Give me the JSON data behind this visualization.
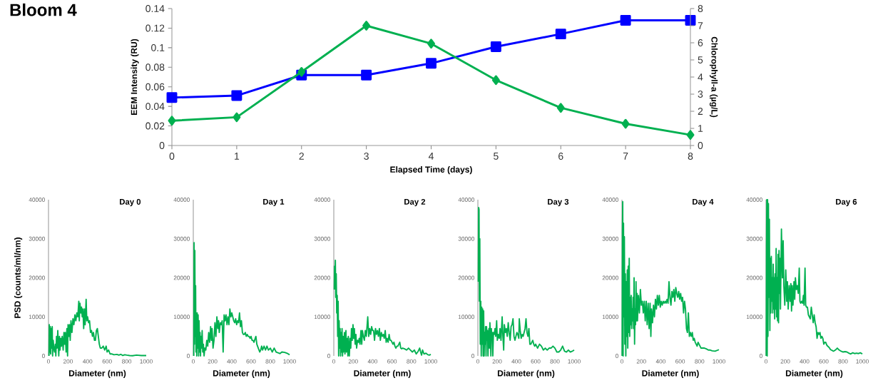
{
  "chart_data": [
    {
      "type": "line",
      "title": "Bloom 4",
      "xlabel": "Elapsed Time (days)",
      "ylabel": "EEM Intensity (RU)",
      "y2label": "Chlorophyll-a (µg/L)",
      "x": [
        0,
        1,
        2,
        3,
        4,
        5,
        6,
        7,
        8
      ],
      "xlim": [
        0,
        8
      ],
      "xticks": [
        0,
        1,
        2,
        3,
        4,
        5,
        6,
        7,
        8
      ],
      "ylim": [
        0,
        0.14
      ],
      "yticks": [
        0,
        0.02,
        0.04,
        0.06,
        0.08,
        0.1,
        0.12,
        0.14
      ],
      "y2lim": [
        0,
        8
      ],
      "y2ticks": [
        0,
        1,
        2,
        3,
        4,
        5,
        6,
        7,
        8
      ],
      "series": [
        {
          "color": "#0000ff",
          "marker": "square",
          "values": [
            0.049,
            0.051,
            0.072,
            0.072,
            0.084,
            0.101,
            0.114,
            0.128,
            0.128
          ]
        },
        {
          "color": "#00b050",
          "marker": "diamond",
          "axis": "y2",
          "values": [
            1.45,
            1.65,
            4.3,
            7.0,
            5.95,
            3.82,
            2.2,
            1.27,
            0.62
          ]
        }
      ]
    },
    {
      "type": "line",
      "title": "Day 0",
      "xlabel": "Diameter (nm)",
      "ylabel": "PSD (counts/ml/nm)",
      "xlim": [
        0,
        1000
      ],
      "xticks": [
        0,
        200,
        400,
        600,
        800,
        1000
      ],
      "ylim": [
        0,
        40000
      ],
      "yticks": [
        0,
        10000,
        20000,
        30000,
        40000
      ],
      "series": [
        {
          "color": "#00b050",
          "x": [
            5,
            8,
            12,
            18,
            22,
            28,
            32,
            38,
            42,
            48,
            55,
            62,
            70,
            75,
            82,
            88,
            95,
            100,
            105,
            112,
            118,
            125,
            132,
            140,
            150,
            158,
            165,
            172,
            180,
            188,
            195,
            200,
            208,
            215,
            222,
            230,
            240,
            250,
            260,
            270,
            280,
            290,
            300,
            310,
            315,
            322,
            330,
            338,
            345,
            352,
            360,
            368,
            375,
            385,
            392,
            400,
            410,
            420,
            430,
            440,
            450,
            460,
            470,
            480,
            490,
            500,
            510,
            520,
            530,
            545,
            560,
            575,
            590,
            600,
            615,
            630,
            650,
            670,
            700,
            720,
            740,
            760,
            780,
            800,
            830,
            860,
            900,
            950,
            1000
          ],
          "values": [
            0,
            8000,
            1000,
            7500,
            500,
            7000,
            2000,
            7500,
            0,
            4000,
            2000,
            1000,
            3000,
            0,
            5000,
            2000,
            6500,
            3000,
            0,
            5000,
            1500,
            4500,
            2500,
            5000,
            1500,
            6000,
            3000,
            6000,
            1000,
            7000,
            0,
            8000,
            5000,
            8000,
            4000,
            9000,
            6000,
            9500,
            8000,
            10500,
            9000,
            11000,
            10000,
            14000,
            9000,
            13500,
            11000,
            12500,
            10000,
            12000,
            7000,
            12000,
            8000,
            14500,
            9000,
            10000,
            8500,
            9000,
            6000,
            6500,
            5000,
            6000,
            4000,
            4000,
            6500,
            7000,
            5000,
            3000,
            2000,
            2000,
            2500,
            1500,
            2500,
            1000,
            1500,
            500,
            500,
            300,
            400,
            200,
            400,
            100,
            300,
            200,
            100,
            50,
            200,
            100,
            100
          ]
        }
      ]
    },
    {
      "type": "line",
      "title": "Day 1",
      "xlabel": "Diameter (nm)",
      "xlim": [
        0,
        1000
      ],
      "xticks": [
        0,
        200,
        400,
        600,
        800,
        1000
      ],
      "ylim": [
        0,
        40000
      ],
      "yticks": [
        0,
        10000,
        20000,
        30000,
        40000
      ],
      "series": [
        {
          "color": "#00b050",
          "x": [
            5,
            8,
            12,
            16,
            20,
            24,
            28,
            32,
            36,
            40,
            45,
            50,
            55,
            60,
            65,
            70,
            75,
            80,
            85,
            92,
            98,
            105,
            112,
            120,
            130,
            140,
            150,
            160,
            170,
            180,
            188,
            195,
            205,
            215,
            225,
            235,
            245,
            255,
            262,
            270,
            280,
            290,
            300,
            310,
            320,
            330,
            340,
            350,
            360,
            370,
            380,
            390,
            400,
            410,
            420,
            430,
            440,
            450,
            460,
            470,
            480,
            490,
            500,
            510,
            520,
            530,
            540,
            550,
            560,
            570,
            580,
            590,
            600,
            610,
            620,
            630,
            650,
            660,
            675,
            690,
            700,
            710,
            720,
            735,
            750,
            765,
            780,
            800,
            820,
            840,
            860,
            880,
            900,
            920,
            950,
            980,
            1000
          ],
          "values": [
            0,
            29000,
            3000,
            27000,
            5000,
            18000,
            1000,
            11000,
            0,
            11000,
            2000,
            10500,
            0,
            9000,
            1000,
            6000,
            0,
            5000,
            2000,
            6500,
            1000,
            3000,
            0,
            2000,
            1500,
            4000,
            2500,
            6000,
            3500,
            7500,
            4000,
            7000,
            2000,
            4000,
            8500,
            5000,
            10000,
            7000,
            9000,
            6000,
            8500,
            8000,
            9000,
            1000,
            10500,
            9000,
            10500,
            8000,
            10000,
            8000,
            12000,
            10000,
            11000,
            10000,
            9000,
            8500,
            9500,
            8000,
            9000,
            8500,
            11000,
            7500,
            9000,
            6000,
            5500,
            5500,
            6000,
            5000,
            5500,
            5000,
            5000,
            4500,
            5000,
            4000,
            4000,
            3500,
            5000,
            3000,
            2000,
            1000,
            1500,
            2500,
            1500,
            2500,
            1500,
            2500,
            1500,
            2000,
            1000,
            2000,
            1000,
            800,
            600,
            1000,
            900,
            600,
            300
          ]
        }
      ]
    },
    {
      "type": "line",
      "title": "Day 2",
      "xlabel": "Diameter (nm)",
      "xlim": [
        0,
        1000
      ],
      "xticks": [
        0,
        200,
        400,
        600,
        800,
        1000
      ],
      "ylim": [
        0,
        40000
      ],
      "yticks": [
        0,
        10000,
        20000,
        30000,
        40000
      ],
      "series": [
        {
          "color": "#00b050",
          "x": [
            5,
            8,
            12,
            16,
            20,
            25,
            30,
            35,
            40,
            45,
            50,
            55,
            60,
            65,
            70,
            75,
            80,
            85,
            90,
            95,
            100,
            110,
            115,
            125,
            130,
            140,
            145,
            150,
            160,
            168,
            175,
            182,
            190,
            198,
            205,
            212,
            220,
            228,
            235,
            245,
            255,
            262,
            270,
            280,
            288,
            295,
            305,
            315,
            325,
            335,
            350,
            360,
            370,
            380,
            390,
            400,
            410,
            420,
            430,
            440,
            450,
            460,
            470,
            480,
            490,
            500,
            510,
            520,
            530,
            540,
            550,
            560,
            570,
            580,
            590,
            600,
            610,
            620,
            630,
            640,
            650,
            660,
            670,
            680,
            690,
            700,
            710,
            730,
            750,
            770,
            790,
            810,
            830,
            850,
            870,
            885,
            895,
            905,
            915,
            930,
            950,
            970,
            985,
            1000
          ],
          "values": [
            17000,
            23000,
            20000,
            24500,
            15000,
            21000,
            11000,
            15500,
            5000,
            14000,
            0,
            9000,
            2000,
            7000,
            0,
            6000,
            1000,
            7000,
            0,
            5000,
            1000,
            6000,
            500,
            6500,
            1000,
            4500,
            0,
            5000,
            0,
            4500,
            2000,
            7000,
            4000,
            8000,
            4500,
            7000,
            3000,
            5500,
            2000,
            4000,
            3500,
            4500,
            3000,
            6500,
            3000,
            6500,
            5000,
            4000,
            6500,
            5000,
            10000,
            5000,
            7000,
            5500,
            7500,
            6500,
            6500,
            4000,
            7000,
            5500,
            6500,
            5000,
            7000,
            4000,
            6000,
            5000,
            5500,
            4500,
            6500,
            3500,
            4500,
            3500,
            5500,
            4000,
            4000,
            3500,
            3000,
            3500,
            2500,
            2000,
            2500,
            2500,
            3000,
            3500,
            2000,
            1800,
            2000,
            1800,
            1500,
            2000,
            1500,
            1000,
            1500,
            500,
            1200,
            2000,
            1000,
            200,
            1500,
            500,
            700,
            300,
            200,
            400
          ]
        }
      ]
    },
    {
      "type": "line",
      "title": "Day 3",
      "xlabel": "Diameter (nm)",
      "xlim": [
        0,
        1000
      ],
      "xticks": [
        0,
        200,
        400,
        600,
        800,
        1000
      ],
      "ylim": [
        0,
        40000
      ],
      "yticks": [
        0,
        10000,
        20000,
        30000,
        40000
      ],
      "series": [
        {
          "color": "#00b050",
          "x": [
            5,
            8,
            12,
            16,
            20,
            25,
            30,
            35,
            40,
            45,
            50,
            55,
            60,
            65,
            70,
            75,
            80,
            85,
            90,
            95,
            100,
            105,
            110,
            115,
            120,
            125,
            130,
            135,
            140,
            145,
            150,
            155,
            162,
            170,
            178,
            185,
            195,
            202,
            212,
            222,
            230,
            240,
            252,
            260,
            268,
            275,
            285,
            295,
            305,
            315,
            325,
            335,
            345,
            355,
            365,
            375,
            385,
            395,
            405,
            415,
            425,
            430,
            440,
            450,
            460,
            470,
            480,
            490,
            500,
            510,
            520,
            530,
            540,
            550,
            560,
            570,
            580,
            590,
            600,
            610,
            620,
            640,
            660,
            680,
            700,
            720,
            740,
            760,
            780,
            800,
            820,
            840,
            860,
            880,
            900,
            920,
            940,
            960,
            980,
            1000
          ],
          "values": [
            19000,
            38000,
            37500,
            14000,
            30000,
            3000,
            14000,
            0,
            12500,
            3000,
            12000,
            0,
            11500,
            0,
            6000,
            3000,
            7500,
            0,
            7500,
            4000,
            6500,
            0,
            5000,
            7000,
            2000,
            8500,
            5000,
            0,
            7000,
            4000,
            6000,
            0,
            6000,
            5500,
            7000,
            5000,
            9000,
            4000,
            5500,
            4500,
            7000,
            4000,
            10000,
            5000,
            1500,
            8000,
            6000,
            7000,
            5000,
            8500,
            6000,
            4000,
            7500,
            8000,
            9500,
            5000,
            4000,
            5000,
            6000,
            5500,
            4500,
            9500,
            6500,
            4500,
            5500,
            5000,
            6000,
            7000,
            9500,
            6000,
            5000,
            7000,
            3000,
            3000,
            3500,
            4000,
            3000,
            2500,
            3000,
            2500,
            2000,
            3000,
            2500,
            1500,
            2000,
            1500,
            2000,
            2000,
            2500,
            2000,
            1000,
            1000,
            1500,
            2500,
            1200,
            1000,
            1500,
            1000,
            1200,
            1500
          ]
        }
      ]
    },
    {
      "type": "line",
      "title": "Day 4",
      "xlabel": "Diameter (nm)",
      "xlim": [
        0,
        1000
      ],
      "xticks": [
        0,
        200,
        400,
        600,
        800,
        1000
      ],
      "ylim": [
        0,
        40000
      ],
      "yticks": [
        0,
        10000,
        20000,
        30000,
        40000
      ],
      "series": [
        {
          "color": "#00b050",
          "x": [
            2,
            5,
            8,
            12,
            16,
            20,
            25,
            30,
            35,
            40,
            45,
            50,
            55,
            60,
            65,
            70,
            75,
            80,
            85,
            90,
            95,
            100,
            105,
            110,
            115,
            120,
            125,
            130,
            135,
            140,
            145,
            150,
            155,
            160,
            170,
            180,
            190,
            200,
            210,
            220,
            230,
            240,
            250,
            260,
            270,
            280,
            290,
            298,
            305,
            315,
            325,
            335,
            345,
            355,
            365,
            375,
            385,
            395,
            405,
            415,
            425,
            435,
            445,
            455,
            465,
            475,
            485,
            495,
            505,
            515,
            525,
            535,
            545,
            555,
            565,
            575,
            585,
            595,
            605,
            615,
            625,
            635,
            645,
            655,
            665,
            675,
            685,
            695,
            705,
            715,
            725,
            735,
            745,
            755,
            765,
            775,
            785,
            795,
            805,
            815,
            830,
            850,
            870,
            890,
            910,
            930,
            960,
            980,
            1000
          ],
          "values": [
            0,
            32000,
            39500,
            0,
            34000,
            10000,
            30500,
            3000,
            21000,
            0,
            19000,
            5000,
            22000,
            2000,
            23000,
            6000,
            25000,
            5000,
            15000,
            8000,
            15500,
            7000,
            12000,
            9000,
            15000,
            7000,
            20000,
            3000,
            12000,
            8000,
            19000,
            9000,
            16000,
            9000,
            15500,
            11000,
            17000,
            13000,
            14000,
            11000,
            14000,
            9000,
            14000,
            8000,
            13500,
            7000,
            13500,
            5000,
            12000,
            8500,
            13000,
            10000,
            14500,
            12000,
            15500,
            13000,
            15500,
            12500,
            14000,
            13000,
            14000,
            13500,
            14000,
            13500,
            14500,
            13500,
            19000,
            15000,
            13000,
            16500,
            15000,
            17000,
            14000,
            17500,
            16000,
            15000,
            16500,
            14500,
            16000,
            14000,
            15000,
            11000,
            14000,
            12000,
            7000,
            6000,
            11000,
            5000,
            6000,
            5000,
            6000,
            4000,
            4500,
            3500,
            3000,
            2500,
            3500,
            3000,
            2500,
            2000,
            2000,
            2000,
            1800,
            1500,
            1500,
            1300,
            1200,
            1400,
            1600
          ]
        }
      ]
    },
    {
      "type": "line",
      "title": "Day 6",
      "xlabel": "Diameter (nm)",
      "xlim": [
        0,
        1000
      ],
      "xticks": [
        0,
        200,
        400,
        600,
        800,
        1000
      ],
      "ylim": [
        0,
        40000
      ],
      "yticks": [
        0,
        10000,
        20000,
        30000,
        40000
      ],
      "series": [
        {
          "color": "#00b050",
          "x": [
            2,
            5,
            8,
            12,
            16,
            20,
            25,
            30,
            35,
            40,
            45,
            50,
            55,
            60,
            65,
            70,
            75,
            80,
            85,
            90,
            95,
            100,
            105,
            110,
            115,
            120,
            125,
            130,
            135,
            140,
            145,
            150,
            160,
            170,
            178,
            185,
            195,
            205,
            215,
            222,
            230,
            240,
            250,
            258,
            265,
            272,
            280,
            290,
            298,
            305,
            315,
            325,
            335,
            345,
            352,
            360,
            370,
            380,
            388,
            395,
            405,
            412,
            420,
            430,
            440,
            450,
            460,
            470,
            480,
            490,
            500,
            510,
            520,
            530,
            540,
            550,
            560,
            570,
            580,
            590,
            600,
            610,
            620,
            630,
            640,
            650,
            660,
            670,
            680,
            700,
            720,
            740,
            760,
            780,
            800,
            820,
            840,
            860,
            880,
            900,
            920,
            940,
            960,
            980,
            1000
          ],
          "values": [
            0,
            28000,
            40000,
            0,
            40000,
            5000,
            39000,
            15000,
            35000,
            6500,
            25000,
            11000,
            25500,
            14000,
            20000,
            11000,
            23500,
            12000,
            20000,
            9500,
            21000,
            12000,
            27500,
            10000,
            20000,
            9000,
            26000,
            8500,
            27000,
            16000,
            25000,
            12000,
            32500,
            20000,
            29500,
            18000,
            13000,
            22000,
            14000,
            19000,
            12000,
            18000,
            14000,
            18500,
            11500,
            18000,
            13000,
            19000,
            14500,
            20000,
            17000,
            18000,
            16000,
            22500,
            14000,
            13500,
            14000,
            13500,
            15500,
            13000,
            22500,
            13000,
            12500,
            12500,
            10500,
            10000,
            9500,
            12500,
            10500,
            8500,
            10500,
            8500,
            7500,
            4500,
            6000,
            5500,
            6000,
            4500,
            5000,
            4500,
            3000,
            3500,
            3500,
            2800,
            2500,
            2300,
            2000,
            1600,
            1500,
            1200,
            1500,
            2000,
            1500,
            1200,
            1000,
            1100,
            1000,
            700,
            500,
            800,
            600,
            700,
            600,
            800,
            500
          ]
        }
      ]
    }
  ]
}
